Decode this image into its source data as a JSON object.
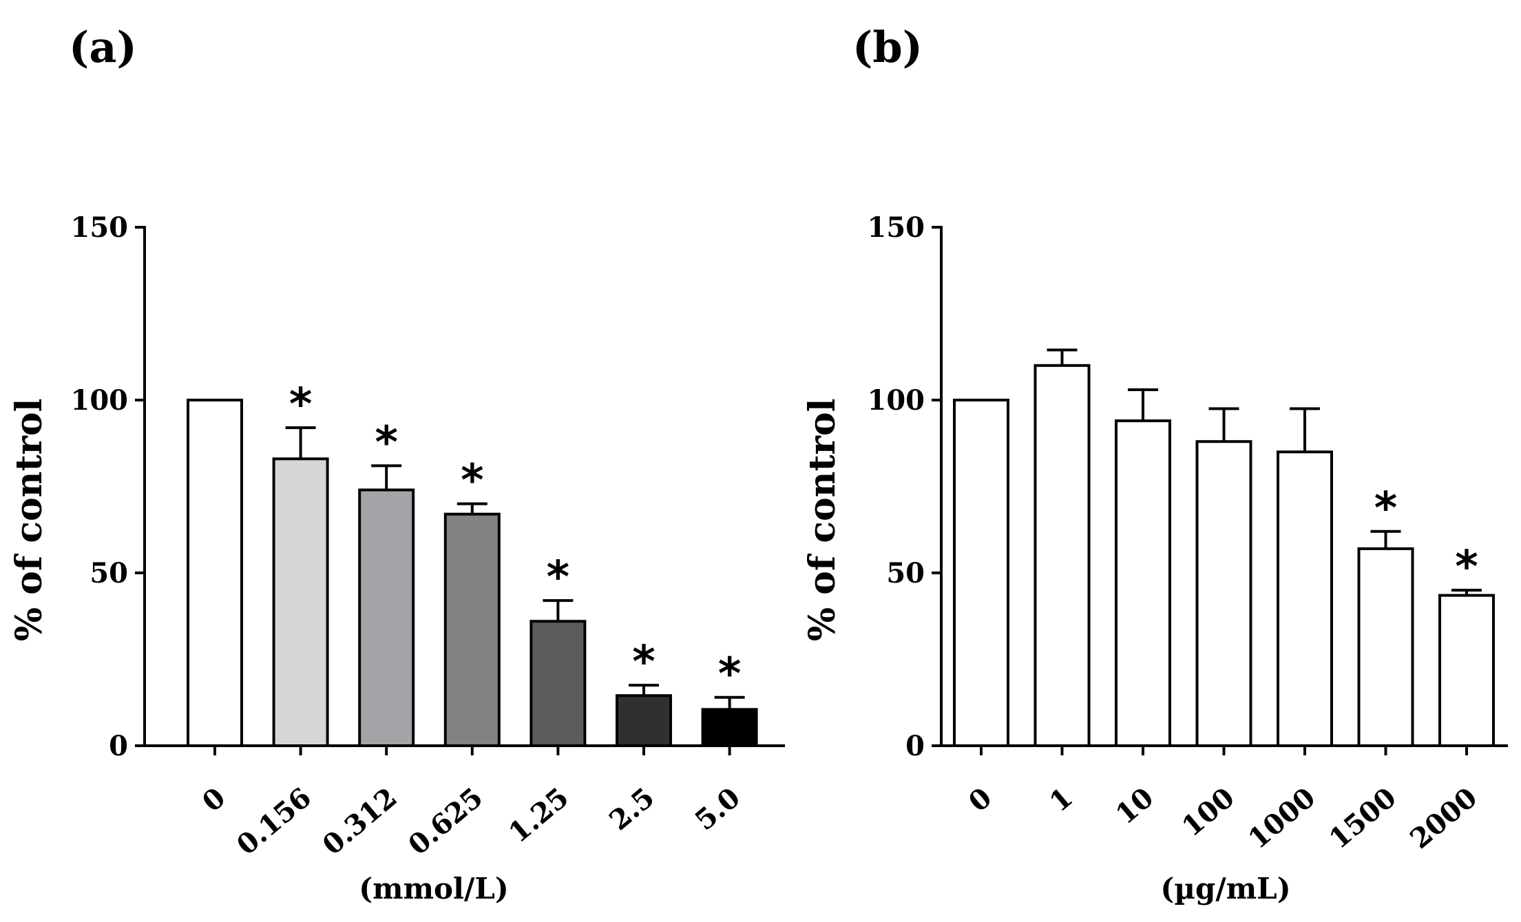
{
  "chart_data": [
    {
      "type": "bar",
      "panel_label": "(a)",
      "categories": [
        "0",
        "0.156",
        "0.312",
        "0.625",
        "1.25",
        "2.5",
        "5.0"
      ],
      "values": [
        100,
        83,
        74,
        67,
        36,
        14.5,
        10.5
      ],
      "errors": [
        0,
        9,
        7,
        3,
        6,
        3,
        3.5
      ],
      "significant": [
        false,
        true,
        true,
        true,
        true,
        true,
        true
      ],
      "significance_marker": "*",
      "colors": [
        "#ffffff",
        "#d6d6d6",
        "#a4a4a8",
        "#828282",
        "#5c5c5c",
        "#303030",
        "#000000"
      ],
      "ylabel": "% of control",
      "xlabel": "(mmol/L)",
      "ylim": [
        0,
        150
      ],
      "yticks": [
        0,
        50,
        100,
        150
      ]
    },
    {
      "type": "bar",
      "panel_label": "(b)",
      "categories": [
        "0",
        "1",
        "10",
        "100",
        "1000",
        "1500",
        "2000"
      ],
      "values": [
        100,
        110,
        94,
        88,
        85,
        57,
        43.5
      ],
      "errors": [
        0,
        4.5,
        9,
        9.5,
        12.5,
        5,
        1.5
      ],
      "significant": [
        false,
        false,
        false,
        false,
        false,
        true,
        true
      ],
      "significance_marker": "*",
      "colors": [
        "#ffffff",
        "#ffffff",
        "#ffffff",
        "#ffffff",
        "#ffffff",
        "#ffffff",
        "#ffffff"
      ],
      "ylabel": "% of control",
      "xlabel": "(µg/mL)",
      "ylim": [
        0,
        150
      ],
      "yticks": [
        0,
        50,
        100,
        150
      ]
    }
  ]
}
